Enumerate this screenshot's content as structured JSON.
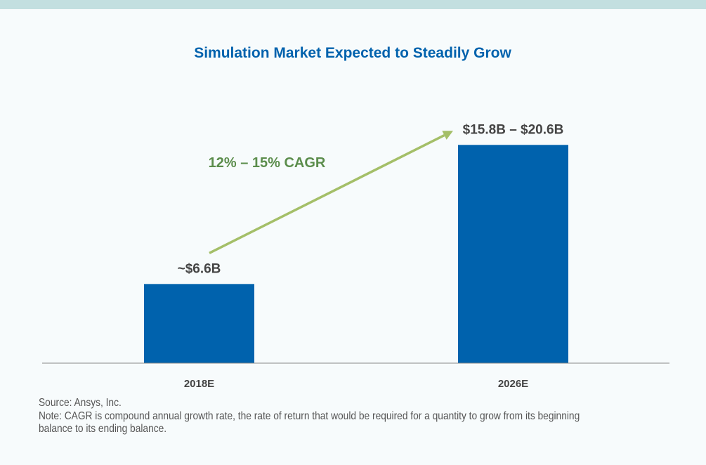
{
  "chart_data": {
    "type": "bar",
    "title": "Simulation Market Expected to Steadily Grow",
    "categories": [
      "2018E",
      "2026E"
    ],
    "values": [
      6.6,
      18.2
    ],
    "data_labels": [
      "~$6.6B",
      "$15.8B – $20.6B"
    ],
    "ylim": [
      0,
      20
    ],
    "xlabel": "",
    "ylabel": "",
    "grid": false,
    "annotation": {
      "text": "12% – 15% CAGR",
      "type": "arrow",
      "from": "2018E",
      "to": "2026E"
    },
    "colors": {
      "bar": "#0062ad",
      "title": "#0062ad",
      "annotation_text": "#5b8d4c",
      "arrow": "#a4bf68",
      "labels": "#444444",
      "band": "#c3dfe0"
    }
  },
  "footer": {
    "source": "Source: Ansys, Inc.",
    "note_line1": "Note: CAGR is compound annual growth rate, the rate of return that would be required for a quantity to grow from its beginning",
    "note_line2": "balance to its ending balance."
  }
}
